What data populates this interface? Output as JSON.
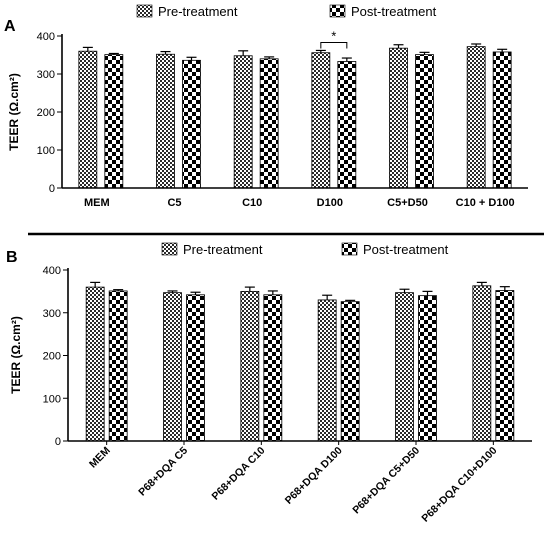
{
  "chart_data": [
    {
      "type": "bar",
      "panel_label": "A",
      "title": "",
      "xlabel": "",
      "ylabel": "TEER (Ω.cm²)",
      "ylim": [
        0,
        400
      ],
      "yticks": [
        0,
        100,
        200,
        300,
        400
      ],
      "categories": [
        "MEM",
        "C5",
        "C10",
        "D100",
        "C5+D50",
        "C10 + D100"
      ],
      "series": [
        {
          "name": "Pre-treatment",
          "values": [
            360,
            352,
            348,
            356,
            368,
            372
          ],
          "errors": [
            10,
            7,
            13,
            6,
            9,
            7
          ]
        },
        {
          "name": "Post-treatment",
          "values": [
            351,
            336,
            340,
            333,
            351,
            358
          ],
          "errors": [
            3,
            8,
            5,
            9,
            6,
            7
          ]
        }
      ],
      "legend_position": "top",
      "grid": false,
      "annotations": [
        {
          "text": "*",
          "category": "D100"
        }
      ]
    },
    {
      "type": "bar",
      "panel_label": "B",
      "title": "",
      "xlabel": "",
      "ylabel": "TEER (Ω.cm²)",
      "ylim": [
        0,
        400
      ],
      "yticks": [
        0,
        100,
        200,
        300,
        400
      ],
      "categories": [
        "MEM",
        "P68+DQA C5",
        "P68+DQA C10",
        "P68+DQA D100",
        "P68+DQA C5+D50",
        "P68+DQA C10+D100"
      ],
      "series": [
        {
          "name": "Pre-treatment",
          "values": [
            360,
            347,
            350,
            330,
            347,
            363
          ],
          "errors": [
            11,
            4,
            10,
            11,
            8,
            8
          ]
        },
        {
          "name": "Post-treatment",
          "values": [
            351,
            342,
            342,
            326,
            340,
            352
          ],
          "errors": [
            3,
            6,
            9,
            3,
            10,
            9
          ]
        }
      ],
      "legend_position": "top",
      "grid": false,
      "annotations": []
    }
  ]
}
